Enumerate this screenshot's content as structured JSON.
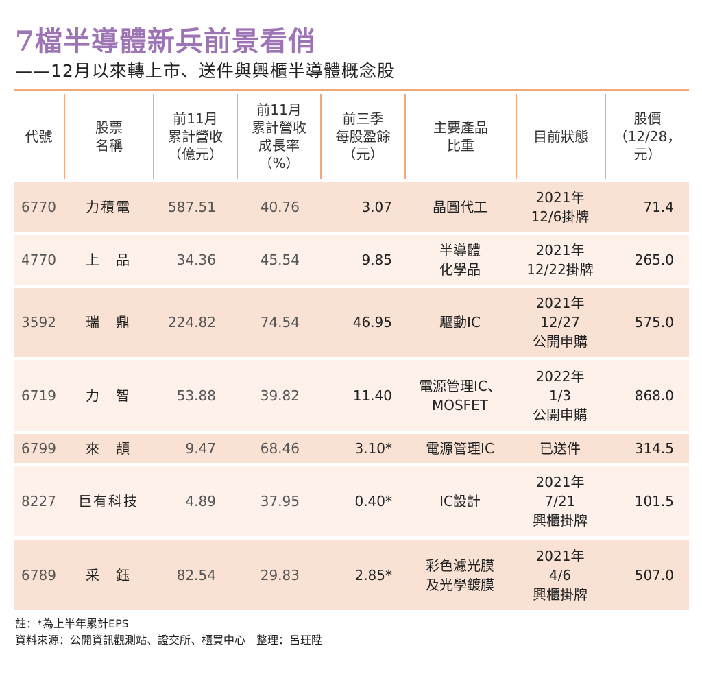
{
  "title": "7檔半導體新兵前景看俏",
  "subtitle": "——12月以來轉上市、送件與興櫃半導體概念股",
  "colors": {
    "title": "#9d74b4",
    "rule": "#f0a87c",
    "row_dark": "#f9e2d4",
    "row_light": "#fdf1ea"
  },
  "headers": [
    "代號",
    "股票\n名稱",
    "前11月\n累計營收\n（億元）",
    "前11月\n累計營收\n成長率\n（%）",
    "前三季\n每股盈餘\n（元）",
    "主要產品\n比重",
    "目前狀態",
    "股價\n（12/28，\n元）"
  ],
  "rows": [
    {
      "code": "6770",
      "name": "力積電",
      "revenue": "587.51",
      "growth": "40.76",
      "eps": "3.07",
      "product": "晶圓代工",
      "status": "2021年\n12/6掛牌",
      "price": "71.4"
    },
    {
      "code": "4770",
      "name": "上　品",
      "revenue": "34.36",
      "growth": "45.54",
      "eps": "9.85",
      "product": "半導體\n化學品",
      "status": "2021年\n12/22掛牌",
      "price": "265.0"
    },
    {
      "code": "3592",
      "name": "瑞　鼎",
      "revenue": "224.82",
      "growth": "74.54",
      "eps": "46.95",
      "product": "驅動IC",
      "status": "2021年\n12/27\n公開申購",
      "price": "575.0"
    },
    {
      "code": "6719",
      "name": "力　智",
      "revenue": "53.88",
      "growth": "39.82",
      "eps": "11.40",
      "product": "電源管理IC、\nMOSFET",
      "status": "2022年\n1/3\n公開申購",
      "price": "868.0"
    },
    {
      "code": "6799",
      "name": "來　頡",
      "revenue": "9.47",
      "growth": "68.46",
      "eps": "3.10*",
      "product": "電源管理IC",
      "status": "已送件",
      "price": "314.5"
    },
    {
      "code": "8227",
      "name": "巨有科技",
      "revenue": "4.89",
      "growth": "37.95",
      "eps": "0.40*",
      "product": "IC設計",
      "status": "2021年\n7/21\n興櫃掛牌",
      "price": "101.5"
    },
    {
      "code": "6789",
      "name": "采　鈺",
      "revenue": "82.54",
      "growth": "29.83",
      "eps": "2.85*",
      "product": "彩色濾光膜\n及光學鍍膜",
      "status": "2021年\n4/6\n興櫃掛牌",
      "price": "507.0"
    }
  ],
  "note": "註：*為上半年累計EPS",
  "source": "資料來源：公開資訊觀測站、證交所、櫃買中心　整理：呂玨陞"
}
